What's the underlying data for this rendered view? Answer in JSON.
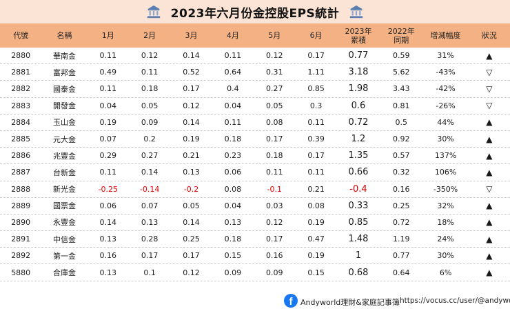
{
  "title": "2023年六月份金控股EPS統計",
  "headers": [
    "代號",
    "名稱",
    "1月",
    "2月",
    "3月",
    "4月",
    "5月",
    "6月",
    "2023年\n累積",
    "2022年\n同期",
    "增減幅度",
    "狀況"
  ],
  "rows": [
    {
      "code": "2880",
      "name": "華南金",
      "m": [
        "0.11",
        "0.12",
        "0.14",
        "0.11",
        "0.12",
        "0.17"
      ],
      "cum": "0.77",
      "prev": "0.59",
      "chg": "31%",
      "status": "▲"
    },
    {
      "code": "2881",
      "name": "富邦金",
      "m": [
        "0.49",
        "0.11",
        "0.52",
        "0.64",
        "0.31",
        "1.11"
      ],
      "cum": "3.18",
      "prev": "5.62",
      "chg": "-43%",
      "status": "▽"
    },
    {
      "code": "2882",
      "name": "國泰金",
      "m": [
        "0.11",
        "0.18",
        "0.17",
        "0.4",
        "0.27",
        "0.85"
      ],
      "cum": "1.98",
      "prev": "3.43",
      "chg": "-42%",
      "status": "▽"
    },
    {
      "code": "2883",
      "name": "開發金",
      "m": [
        "0.04",
        "0.05",
        "0.12",
        "0.04",
        "0.05",
        "0.3"
      ],
      "cum": "0.6",
      "prev": "0.81",
      "chg": "-26%",
      "status": "▽"
    },
    {
      "code": "2884",
      "name": "玉山金",
      "m": [
        "0.19",
        "0.09",
        "0.14",
        "0.11",
        "0.08",
        "0.11"
      ],
      "cum": "0.72",
      "prev": "0.5",
      "chg": "44%",
      "status": "▲"
    },
    {
      "code": "2885",
      "name": "元大金",
      "m": [
        "0.07",
        "0.2",
        "0.19",
        "0.18",
        "0.17",
        "0.39"
      ],
      "cum": "1.2",
      "prev": "0.92",
      "chg": "30%",
      "status": "▲"
    },
    {
      "code": "2886",
      "name": "兆豐金",
      "m": [
        "0.29",
        "0.27",
        "0.21",
        "0.23",
        "0.18",
        "0.17"
      ],
      "cum": "1.35",
      "prev": "0.57",
      "chg": "137%",
      "status": "▲"
    },
    {
      "code": "2887",
      "name": "台新金",
      "m": [
        "0.11",
        "0.14",
        "0.13",
        "0.06",
        "0.11",
        "0.11"
      ],
      "cum": "0.66",
      "prev": "0.32",
      "chg": "106%",
      "status": "▲"
    },
    {
      "code": "2888",
      "name": "新光金",
      "m": [
        "-0.25",
        "-0.14",
        "-0.2",
        "0.08",
        "-0.1",
        "0.21"
      ],
      "cum": "-0.4",
      "prev": "0.16",
      "chg": "-350%",
      "status": "▽"
    },
    {
      "code": "2889",
      "name": "國票金",
      "m": [
        "0.06",
        "0.07",
        "0.05",
        "0.04",
        "0.03",
        "0.08"
      ],
      "cum": "0.33",
      "prev": "0.25",
      "chg": "32%",
      "status": "▲"
    },
    {
      "code": "2890",
      "name": "永豐金",
      "m": [
        "0.14",
        "0.13",
        "0.14",
        "0.13",
        "0.12",
        "0.19"
      ],
      "cum": "0.85",
      "prev": "0.72",
      "chg": "18%",
      "status": "▲"
    },
    {
      "code": "2891",
      "name": "中信金",
      "m": [
        "0.13",
        "0.28",
        "0.25",
        "0.18",
        "0.17",
        "0.47"
      ],
      "cum": "1.48",
      "prev": "1.19",
      "chg": "24%",
      "status": "▲"
    },
    {
      "code": "2892",
      "name": "第一金",
      "m": [
        "0.16",
        "0.17",
        "0.17",
        "0.15",
        "0.16",
        "0.19"
      ],
      "cum": "1",
      "prev": "0.77",
      "chg": "30%",
      "status": "▲"
    },
    {
      "code": "5880",
      "name": "合庫金",
      "m": [
        "0.13",
        "0.1",
        "0.12",
        "0.09",
        "0.09",
        "0.15"
      ],
      "cum": "0.68",
      "prev": "0.64",
      "chg": "6%",
      "status": "▲"
    }
  ],
  "footer": {
    "fb_label": "Andyworld理財&家庭記事簿",
    "url": "https://vocus.cc/user/@andyworld"
  },
  "colors": {
    "title_bg": "#fbe4d5",
    "header_bg": "#f4b183",
    "negative": "#e00000",
    "facebook": "#1877f2"
  },
  "icons": {
    "title_left": "bank-icon",
    "title_right": "bank-icon",
    "footer": "facebook-icon"
  }
}
